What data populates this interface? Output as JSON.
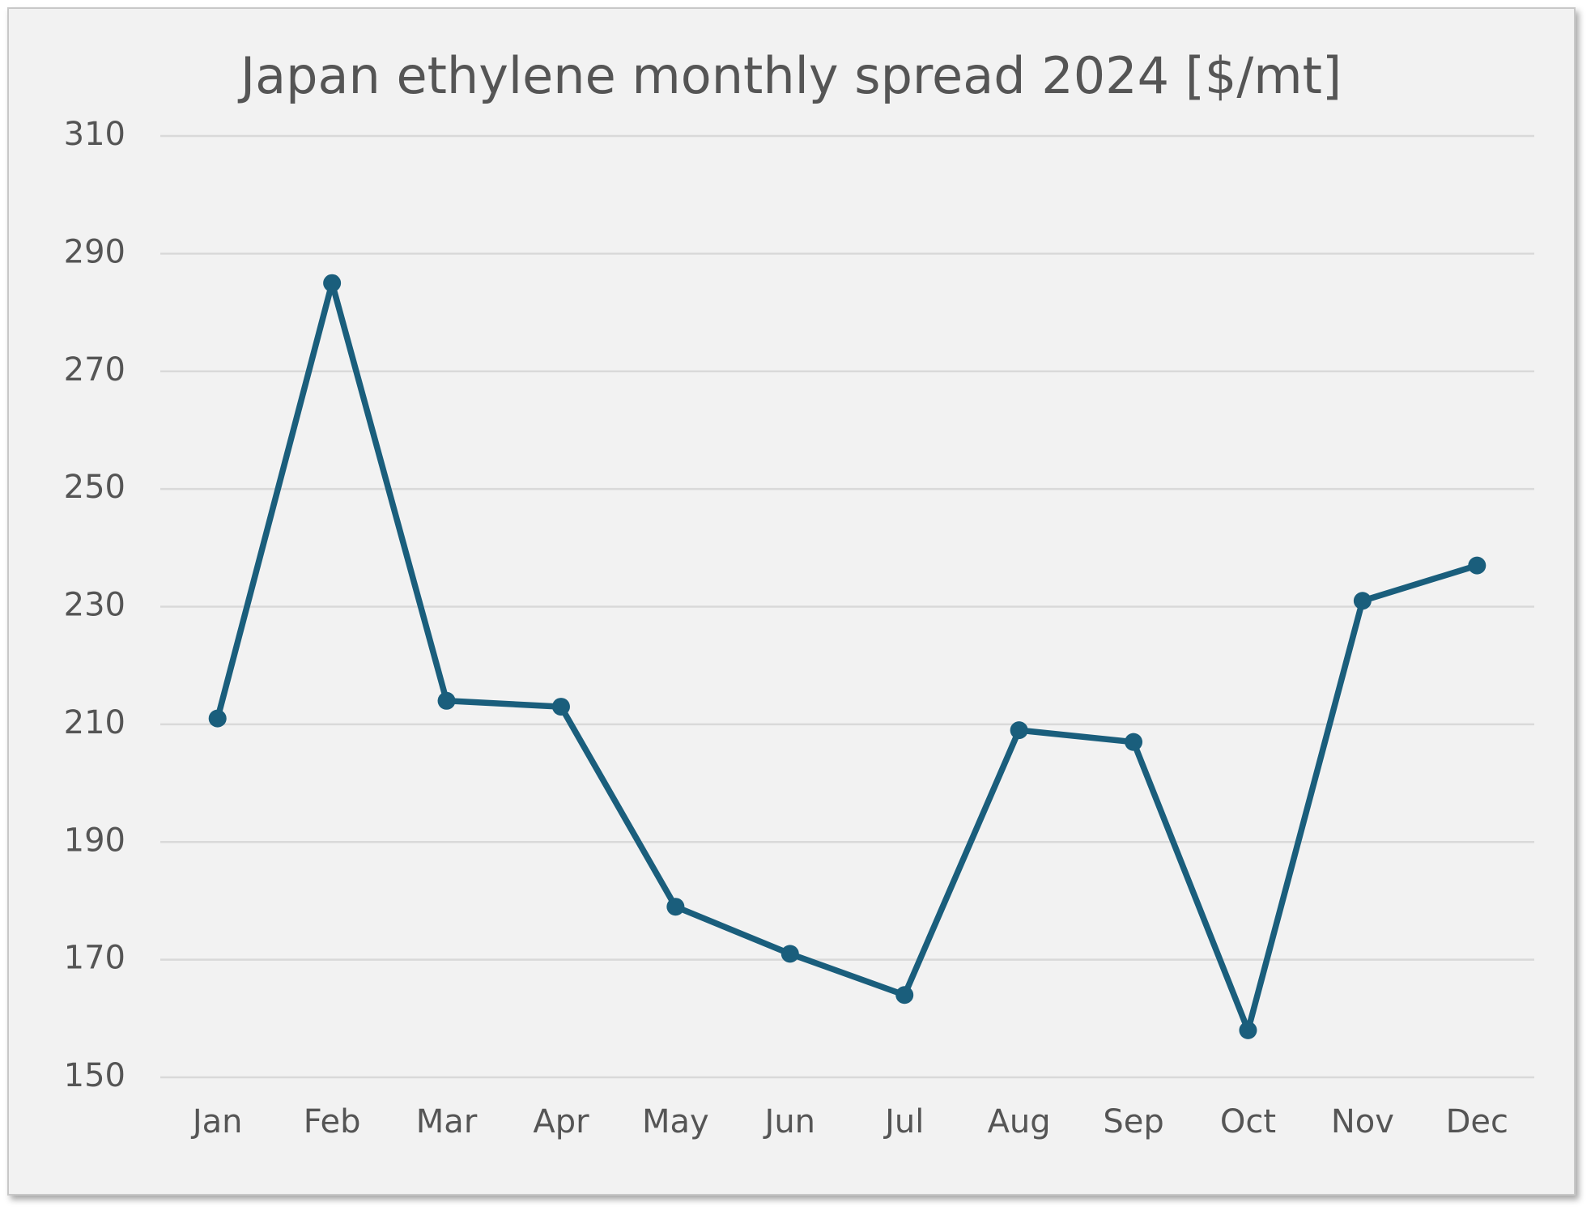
{
  "chart_data": {
    "type": "line",
    "title": "Japan ethylene monthly spread 2024 [$/mt]",
    "categories": [
      "Jan",
      "Feb",
      "Mar",
      "Apr",
      "May",
      "Jun",
      "Jul",
      "Aug",
      "Sep",
      "Oct",
      "Nov",
      "Dec"
    ],
    "series": [
      {
        "color": "#1a5e7c",
        "values": [
          211,
          285,
          214,
          213,
          179,
          171,
          164,
          209,
          207,
          158,
          231,
          237
        ]
      }
    ],
    "ylim": [
      150,
      310
    ],
    "yticks": [
      150,
      170,
      190,
      210,
      230,
      250,
      270,
      290,
      310
    ],
    "grid": true
  }
}
